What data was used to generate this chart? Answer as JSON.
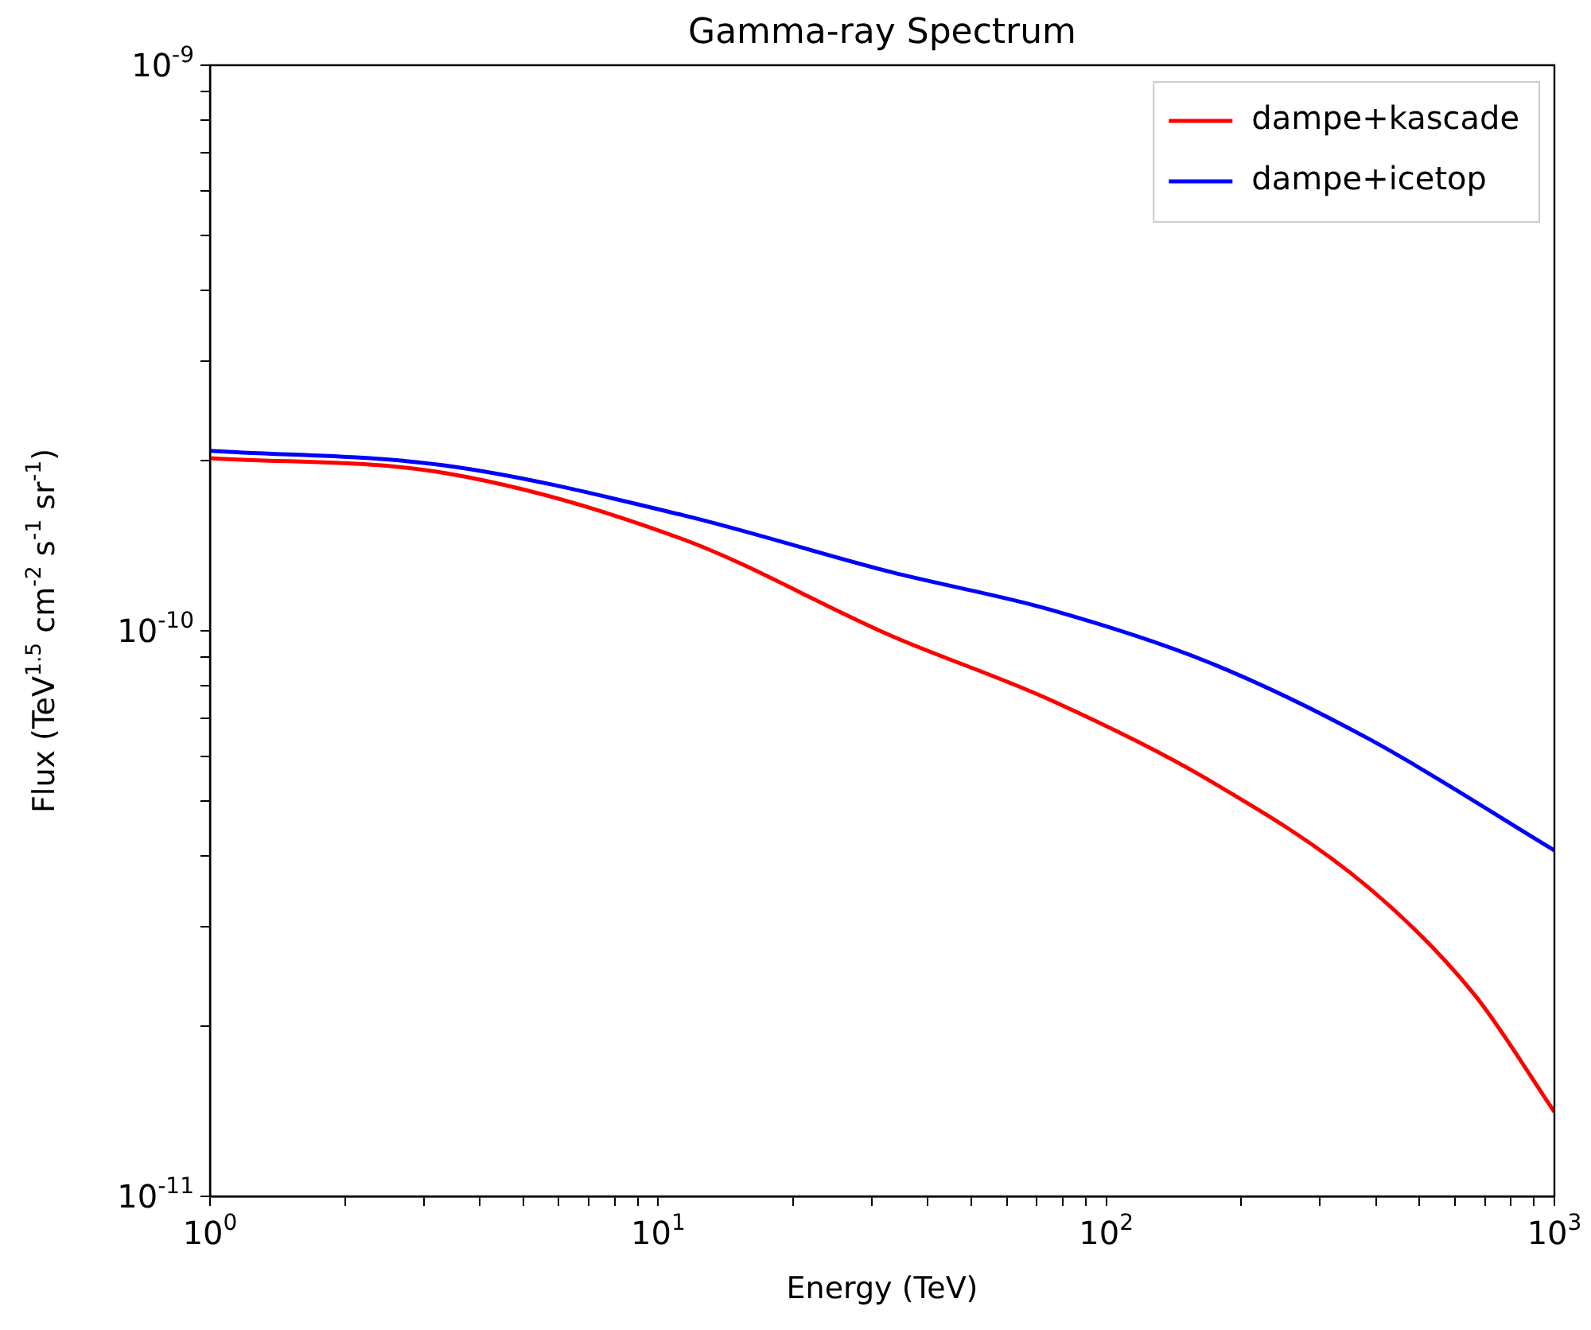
{
  "chart_data": {
    "type": "line",
    "title": "Gamma-ray Spectrum",
    "xlabel": "Energy (TeV)",
    "ylabel": "Flux (TeV$^{1.5}$ cm$^{-2}$ s$^{-1}$ sr$^{-1}$)",
    "log": "xy",
    "grid": false,
    "legend": "top right",
    "marker": "none",
    "line_style": "solid",
    "xlim": [
      1,
      1000
    ],
    "ylim": [
      1e-11,
      1e-09
    ],
    "xticks": [
      {
        "value": 1,
        "label": "10$^{0}$"
      },
      {
        "value": 2,
        "label": null
      },
      {
        "value": 3,
        "label": null
      },
      {
        "value": 4,
        "label": null
      },
      {
        "value": 5,
        "label": null
      },
      {
        "value": 6,
        "label": null
      },
      {
        "value": 7,
        "label": null
      },
      {
        "value": 8,
        "label": null
      },
      {
        "value": 9,
        "label": null
      },
      {
        "value": 10,
        "label": "10$^{1}$"
      },
      {
        "value": 20,
        "label": null
      },
      {
        "value": 30,
        "label": null
      },
      {
        "value": 40,
        "label": null
      },
      {
        "value": 50,
        "label": null
      },
      {
        "value": 60,
        "label": null
      },
      {
        "value": 70,
        "label": null
      },
      {
        "value": 80,
        "label": null
      },
      {
        "value": 90,
        "label": null
      },
      {
        "value": 100,
        "label": "10$^{2}$"
      },
      {
        "value": 200,
        "label": null
      },
      {
        "value": 300,
        "label": null
      },
      {
        "value": 400,
        "label": null
      },
      {
        "value": 500,
        "label": null
      },
      {
        "value": 600,
        "label": null
      },
      {
        "value": 700,
        "label": null
      },
      {
        "value": 800,
        "label": null
      },
      {
        "value": 900,
        "label": null
      },
      {
        "value": 1000,
        "label": "10$^{3}$"
      }
    ],
    "yticks": [
      {
        "value": 1e-11,
        "label": "10$^{-11}$"
      },
      {
        "value": 2e-11,
        "label": null
      },
      {
        "value": 3e-11,
        "label": null
      },
      {
        "value": 4e-11,
        "label": null
      },
      {
        "value": 5e-11,
        "label": null
      },
      {
        "value": 6e-11,
        "label": null
      },
      {
        "value": 7e-11,
        "label": null
      },
      {
        "value": 8e-11,
        "label": null
      },
      {
        "value": 9e-11,
        "label": null
      },
      {
        "value": 1e-10,
        "label": "10$^{-10}$"
      },
      {
        "value": 2e-10,
        "label": null
      },
      {
        "value": 3e-10,
        "label": null
      },
      {
        "value": 4e-10,
        "label": null
      },
      {
        "value": 5e-10,
        "label": null
      },
      {
        "value": 6e-10,
        "label": null
      },
      {
        "value": 7e-10,
        "label": null
      },
      {
        "value": 8e-10,
        "label": null
      },
      {
        "value": 9e-10,
        "label": null
      },
      {
        "value": 1e-09,
        "label": "10$^{-9}$"
      }
    ],
    "series": [
      {
        "name": "dampe+kascade",
        "color": "#ff0000",
        "x": [
          1,
          3.35,
          11.4,
          33.1,
          74.9,
          169,
          384,
          664,
          1000
        ],
        "values": [
          2.02e-10,
          1.9e-10,
          1.45e-10,
          9.8e-11,
          7.55e-11,
          5.45e-11,
          3.52e-11,
          2.27e-11,
          1.41e-11
        ]
      },
      {
        "name": "dampe+icetop",
        "color": "#0000ff",
        "x": [
          1,
          3.35,
          11.4,
          33.1,
          74.9,
          169,
          384,
          1000
        ],
        "values": [
          2.08e-10,
          1.96e-10,
          1.6e-10,
          1.27e-10,
          1.09e-10,
          8.8e-11,
          6.45e-11,
          4.09e-11
        ]
      }
    ]
  }
}
